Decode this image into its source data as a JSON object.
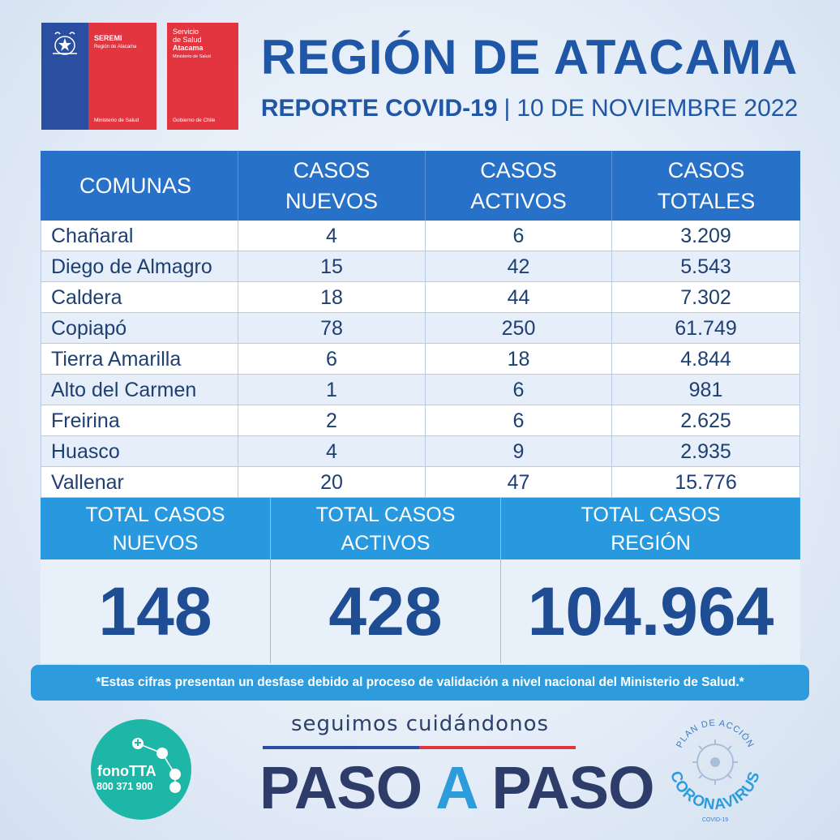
{
  "logos": {
    "seremi": {
      "title": "SEREMI",
      "subtitle": "Región de Atacama",
      "bottom": "Ministerio de Salud"
    },
    "salud": {
      "line1": "Servicio",
      "line2": "de Salud",
      "line3": "Atacama",
      "small": "Ministerio de Salud",
      "bottom": "Gobierno de Chile"
    }
  },
  "header": {
    "title": "REGIÓN DE ATACAMA",
    "report": "REPORTE COVID-19",
    "separator": "|",
    "date": "10 DE NOVIEMBRE 2022"
  },
  "table": {
    "headers": [
      "COMUNAS",
      "CASOS NUEVOS",
      "CASOS ACTIVOS",
      "CASOS TOTALES"
    ],
    "rows": [
      [
        "Chañaral",
        "4",
        "6",
        "3.209"
      ],
      [
        "Diego de Almagro",
        "15",
        "42",
        "5.543"
      ],
      [
        "Caldera",
        "18",
        "44",
        "7.302"
      ],
      [
        "Copiapó",
        "78",
        "250",
        "61.749"
      ],
      [
        "Tierra Amarilla",
        "6",
        "18",
        "4.844"
      ],
      [
        "Alto del Carmen",
        "1",
        "6",
        "981"
      ],
      [
        "Freirina",
        "2",
        "6",
        "2.625"
      ],
      [
        "Huasco",
        "4",
        "9",
        "2.935"
      ],
      [
        "Vallenar",
        "20",
        "47",
        "15.776"
      ]
    ]
  },
  "totals": [
    {
      "label_line1": "TOTAL CASOS",
      "label_line2": "NUEVOS",
      "value": "148"
    },
    {
      "label_line1": "TOTAL CASOS",
      "label_line2": "ACTIVOS",
      "value": "428"
    },
    {
      "label_line1": "TOTAL CASOS",
      "label_line2": "REGIÓN",
      "value": "104.964"
    }
  ],
  "note": "*Estas cifras presentan un desfase debido al proceso de validación a nivel nacional del Ministerio de Salud.*",
  "footer": {
    "fono_name": "fonoTTA",
    "fono_number": "800 371 900",
    "tagline": "seguimos cuidándonos",
    "paso1": "PASO",
    "paso_a": "A",
    "paso2": "PASO",
    "plan_top": "PLAN DE ACCIÓN",
    "plan_main": "CORONAVIRUS",
    "plan_bottom": "COVID-19"
  },
  "colors": {
    "title_blue": "#1f56a5",
    "header_blue": "#2771c8",
    "totals_blue": "#2999df",
    "note_blue": "#2e9bdc",
    "gov_blue": "#2b4fa0",
    "gov_red": "#e3353f",
    "fono_teal": "#1eb7a7"
  }
}
